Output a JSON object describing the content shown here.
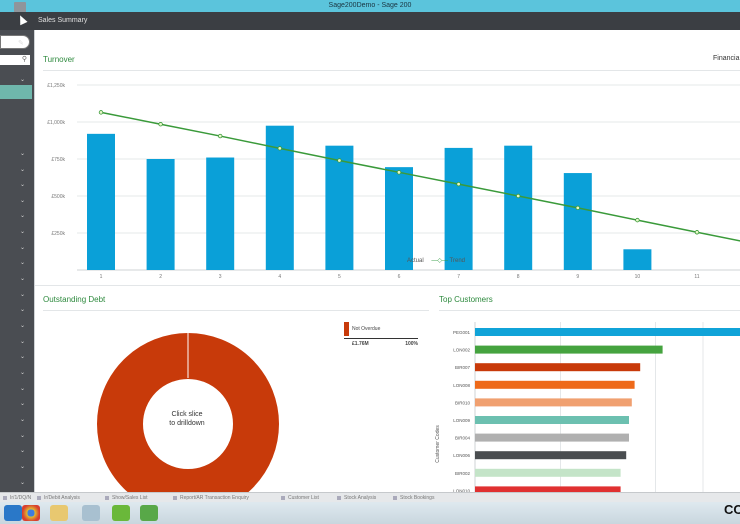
{
  "window": {
    "title": "Sage200Demo - Sage 200"
  },
  "top_tab": {
    "label": "Sales Summary"
  },
  "financial_label": "Financia",
  "turnover": {
    "title": "Turnover",
    "legend_actual": "Actual",
    "legend_trend": "Trend"
  },
  "chart_data": [
    {
      "type": "bar",
      "title": "Turnover",
      "categories": [
        "1",
        "2",
        "3",
        "4",
        "5",
        "6",
        "7",
        "8",
        "9",
        "10",
        "11"
      ],
      "series": [
        {
          "name": "Actual",
          "values": [
            920000,
            750000,
            760000,
            975000,
            840000,
            695000,
            825000,
            840000,
            655000,
            140000,
            null
          ]
        },
        {
          "name": "Trend",
          "values": [
            1065000,
            985000,
            905000,
            822000,
            740000,
            660000,
            580000,
            500000,
            420000,
            337000,
            255000
          ]
        }
      ],
      "ytick_labels": [
        "£250k",
        "£500k",
        "£750k",
        "£1,000k",
        "£1,250k"
      ],
      "ylim": [
        0,
        1250000
      ],
      "grid": true,
      "legend": "bottom"
    },
    {
      "type": "pie",
      "title": "Outstanding Debt",
      "series": [
        {
          "name": "Not Overdue",
          "values": [
            100
          ]
        }
      ],
      "legend_value": "£1.76M",
      "legend_pct": "100%"
    },
    {
      "type": "bar",
      "title": "Top Customers",
      "ylabel": "Customer Codes",
      "categories": [
        "PEG001",
        "LON002",
        "BIR007",
        "LON008",
        "BIR010",
        "LON009",
        "BIR004",
        "LON006",
        "BIR002",
        "LON010"
      ],
      "values": [
        100,
        67,
        59,
        57,
        56,
        55,
        55,
        54,
        52,
        52
      ],
      "colors": [
        "#10a3d8",
        "#45a33f",
        "#c83a0a",
        "#ee6a1a",
        "#f0a070",
        "#6cc0b0",
        "#b0b0b0",
        "#4a4d50",
        "#c4e4c8",
        "#e03030"
      ]
    }
  ],
  "debt": {
    "title": "Outstanding Debt",
    "center_line1": "Click slice",
    "center_line2": "to drilldown",
    "legend_label": "Not Overdue",
    "legend_value": "£1.76M",
    "legend_pct": "100%"
  },
  "customers": {
    "title": "Top Customers",
    "axis_label": "Customer Codes"
  },
  "tabstrip": [
    "Ir/1/DQ/N",
    "Ir/Debit Analysis",
    "Show/Sales List",
    "Report/AR Transaction Enquiry",
    "Customer List",
    "Stock Analysis",
    "Stock Bookings"
  ],
  "corner_text": "CO"
}
